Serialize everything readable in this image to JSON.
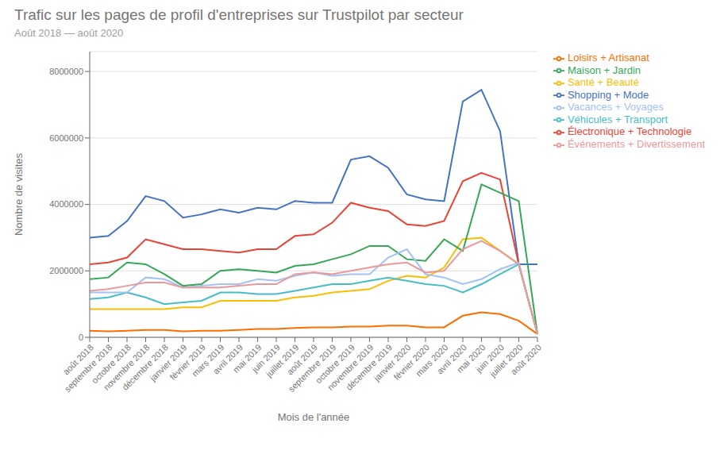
{
  "chart_data": {
    "type": "line",
    "title": "Trafic sur les pages de profil d'entreprises sur Trustpilot par secteur",
    "subtitle": "Août 2018 — août 2020",
    "xlabel": "Mois de l'année",
    "ylabel": "Nombre de visites",
    "categories": [
      "août 2018",
      "septembre 2018",
      "octobre 2018",
      "novembre 2018",
      "décembre 2018",
      "janvier 2019",
      "février 2019",
      "mars 2019",
      "avril 2019",
      "mai 2019",
      "juin 2019",
      "juillet 2019",
      "août 2019",
      "septembre 2019",
      "octobre 2019",
      "novembre 2019",
      "décembre 2019",
      "janvier 2020",
      "février 2020",
      "mars 2020",
      "avril 2020",
      "mai 2020",
      "juin 2020",
      "juillet 2020",
      "août 2020"
    ],
    "series": [
      {
        "name": "Shopping + Mode",
        "color": "#4472C4",
        "values": [
          3000000,
          3050000,
          3500000,
          4250000,
          4100000,
          3600000,
          3700000,
          3850000,
          3750000,
          3900000,
          3850000,
          4100000,
          4050000,
          4050000,
          5350000,
          5450000,
          5100000,
          4300000,
          4150000,
          4100000,
          7100000,
          7450000,
          6200000,
          2200000,
          2200000
        ]
      },
      {
        "name": "Électronique + Technologie",
        "color": "#EA4335",
        "values": [
          2200000,
          2250000,
          2400000,
          2950000,
          2800000,
          2650000,
          2650000,
          2600000,
          2550000,
          2650000,
          2650000,
          3050000,
          3100000,
          3450000,
          4050000,
          3900000,
          3800000,
          3400000,
          3350000,
          3500000,
          4700000,
          4950000,
          4750000,
          2200000,
          100000
        ]
      },
      {
        "name": "Santé + Beauté",
        "color": "#FBBC04",
        "values": [
          850000,
          850000,
          850000,
          850000,
          850000,
          900000,
          900000,
          1100000,
          1100000,
          1100000,
          1100000,
          1200000,
          1250000,
          1350000,
          1400000,
          1450000,
          1700000,
          1850000,
          1800000,
          2100000,
          2950000,
          3000000,
          2600000,
          2200000,
          100000
        ]
      },
      {
        "name": "Maison + Jardin",
        "color": "#34A853",
        "values": [
          1750000,
          1800000,
          2250000,
          2200000,
          1900000,
          1550000,
          1600000,
          2000000,
          2050000,
          2000000,
          1950000,
          2150000,
          2200000,
          2350000,
          2500000,
          2750000,
          2750000,
          2350000,
          2300000,
          2950000,
          2600000,
          4600000,
          4350000,
          4100000,
          100000
        ]
      },
      {
        "name": "Loisirs + Artisanat",
        "color": "#FF6D00",
        "values": [
          200000,
          180000,
          200000,
          220000,
          220000,
          180000,
          200000,
          200000,
          220000,
          250000,
          250000,
          280000,
          300000,
          300000,
          320000,
          320000,
          350000,
          350000,
          300000,
          300000,
          650000,
          750000,
          700000,
          500000,
          100000
        ]
      },
      {
        "name": "Véhicules + Transport",
        "color": "#46BDC6",
        "values": [
          1150000,
          1200000,
          1350000,
          1200000,
          1000000,
          1050000,
          1100000,
          1350000,
          1350000,
          1300000,
          1300000,
          1400000,
          1500000,
          1600000,
          1600000,
          1700000,
          1800000,
          1700000,
          1600000,
          1550000,
          1350000,
          1600000,
          1900000,
          2200000,
          100000
        ]
      },
      {
        "name": "Vacances + Voyages",
        "color": "#A4C2F4",
        "values": [
          1350000,
          1350000,
          1350000,
          1800000,
          1750000,
          1500000,
          1550000,
          1600000,
          1600000,
          1750000,
          1700000,
          1850000,
          1950000,
          1850000,
          1900000,
          1900000,
          2400000,
          2650000,
          1900000,
          1800000,
          1600000,
          1750000,
          2050000,
          2250000,
          100000
        ]
      },
      {
        "name": "Événements + Divertissement",
        "color": "#EA9999",
        "values": [
          1400000,
          1450000,
          1550000,
          1650000,
          1650000,
          1500000,
          1500000,
          1500000,
          1550000,
          1600000,
          1600000,
          1900000,
          1950000,
          1900000,
          2000000,
          2100000,
          2200000,
          2250000,
          1950000,
          2000000,
          2650000,
          2900000,
          2600000,
          2200000,
          100000
        ]
      }
    ],
    "ylim": [
      0,
      8600000
    ],
    "yticks": [
      0,
      2000000,
      4000000,
      6000000,
      8000000
    ],
    "grid": true,
    "legend": "right"
  }
}
